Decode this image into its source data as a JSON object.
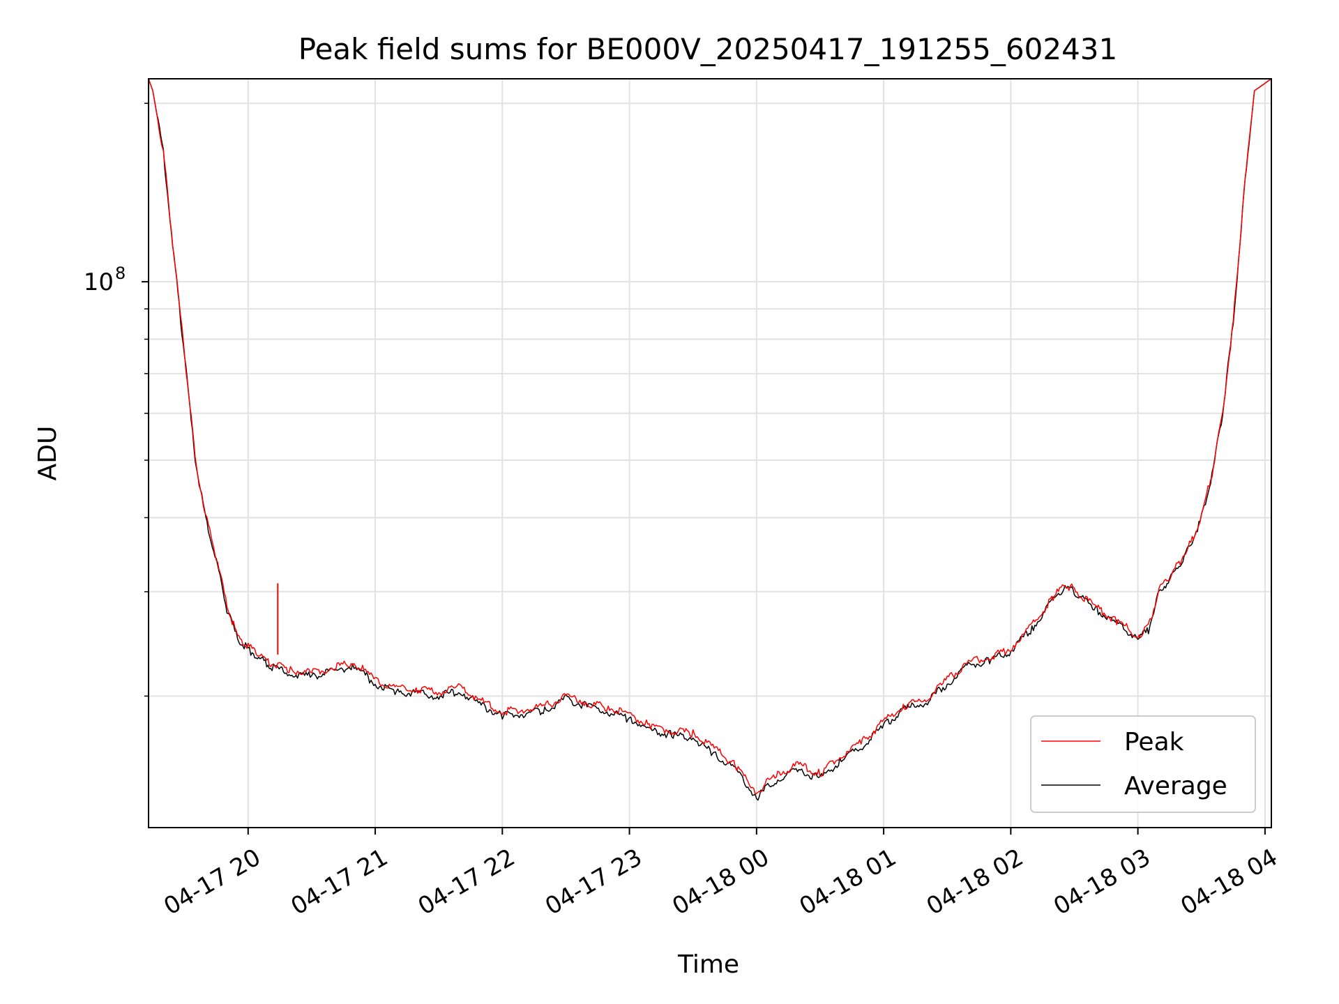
{
  "chart_data": {
    "type": "line",
    "title": "Peak field sums for BE000V_20250417_191255_602431",
    "xlabel": "Time",
    "ylabel": "ADU",
    "yscale": "log",
    "grid": true,
    "ylim": [
      12000000,
      220000000
    ],
    "xlim": [
      "04-17 19:13",
      "04-18 04:03"
    ],
    "x_ticks": [
      "04-17 20",
      "04-17 21",
      "04-17 22",
      "04-17 23",
      "04-18 00",
      "04-18 01",
      "04-18 02",
      "04-18 03",
      "04-18 04"
    ],
    "y_major_ticks": [
      {
        "value": 100000000,
        "mantissa": "10",
        "exponent": "8"
      }
    ],
    "y_minor_ticks": [
      20000000,
      30000000,
      40000000,
      50000000,
      60000000,
      70000000,
      80000000,
      90000000,
      200000000
    ],
    "legend": {
      "position": "lower right",
      "entries": [
        "Peak",
        "Average"
      ]
    },
    "colors": {
      "Peak": "#ff0000",
      "Average": "#000000"
    },
    "series": [
      {
        "name": "Average",
        "x": [
          "04-17 19:13",
          "04-17 19:15",
          "04-17 19:20",
          "04-17 19:25",
          "04-17 19:30",
          "04-17 19:35",
          "04-17 19:40",
          "04-17 19:45",
          "04-17 19:50",
          "04-17 19:55",
          "04-17 20:00",
          "04-17 20:05",
          "04-17 20:10",
          "04-17 20:20",
          "04-17 20:30",
          "04-17 20:40",
          "04-17 20:50",
          "04-17 21:00",
          "04-17 21:10",
          "04-17 21:20",
          "04-17 21:30",
          "04-17 21:40",
          "04-17 21:50",
          "04-17 22:00",
          "04-17 22:10",
          "04-17 22:20",
          "04-17 22:30",
          "04-17 22:40",
          "04-17 22:50",
          "04-17 23:00",
          "04-17 23:10",
          "04-17 23:20",
          "04-17 23:30",
          "04-17 23:40",
          "04-17 23:50",
          "04-18 00:00",
          "04-18 00:10",
          "04-18 00:20",
          "04-18 00:30",
          "04-18 00:40",
          "04-18 00:50",
          "04-18 01:00",
          "04-18 01:10",
          "04-18 01:20",
          "04-18 01:30",
          "04-18 01:40",
          "04-18 01:50",
          "04-18 02:00",
          "04-18 02:10",
          "04-18 02:20",
          "04-18 02:25",
          "04-18 02:30",
          "04-18 02:40",
          "04-18 02:50",
          "04-18 03:00",
          "04-18 03:05",
          "04-18 03:10",
          "04-18 03:15",
          "04-18 03:20",
          "04-18 03:25",
          "04-18 03:30",
          "04-18 03:35",
          "04-18 03:40",
          "04-18 03:45",
          "04-18 03:50",
          "04-18 03:55",
          "04-18 04:03"
        ],
        "y": [
          220000000,
          210000000,
          165000000,
          110000000,
          75000000,
          50000000,
          40000000,
          34000000,
          28000000,
          25000000,
          24000000,
          23200000,
          22500000,
          21800000,
          21600000,
          22000000,
          22500000,
          21000000,
          20300000,
          20200000,
          20000000,
          20400000,
          19300000,
          18500000,
          18700000,
          18900000,
          19800000,
          19200000,
          18800000,
          18300000,
          17500000,
          17200000,
          17000000,
          16000000,
          15000000,
          13500000,
          14500000,
          15000000,
          14500000,
          15600000,
          16500000,
          17800000,
          19000000,
          19500000,
          21000000,
          22500000,
          23000000,
          23800000,
          26000000,
          29000000,
          30500000,
          30000000,
          28000000,
          26500000,
          25000000,
          25800000,
          30000000,
          31500000,
          33500000,
          36000000,
          40000000,
          47000000,
          60000000,
          85000000,
          140000000,
          210000000,
          220000000
        ]
      },
      {
        "name": "Peak",
        "x": [
          "04-17 19:13",
          "04-17 19:15",
          "04-17 19:20",
          "04-17 19:25",
          "04-17 19:30",
          "04-17 19:35",
          "04-17 19:40",
          "04-17 19:45",
          "04-17 19:50",
          "04-17 19:55",
          "04-17 20:00",
          "04-17 20:05",
          "04-17 20:10",
          "04-17 20:20",
          "04-17 20:30",
          "04-17 20:40",
          "04-17 20:50",
          "04-17 21:00",
          "04-17 21:10",
          "04-17 21:20",
          "04-17 21:30",
          "04-17 21:40",
          "04-17 21:50",
          "04-17 22:00",
          "04-17 22:10",
          "04-17 22:20",
          "04-17 22:30",
          "04-17 22:40",
          "04-17 22:50",
          "04-17 23:00",
          "04-17 23:10",
          "04-17 23:20",
          "04-17 23:30",
          "04-17 23:40",
          "04-17 23:50",
          "04-18 00:00",
          "04-18 00:10",
          "04-18 00:20",
          "04-18 00:30",
          "04-18 00:40",
          "04-18 00:50",
          "04-18 01:00",
          "04-18 01:10",
          "04-18 01:20",
          "04-18 01:30",
          "04-18 01:40",
          "04-18 01:50",
          "04-18 02:00",
          "04-18 02:10",
          "04-18 02:20",
          "04-18 02:25",
          "04-18 02:30",
          "04-18 02:40",
          "04-18 02:50",
          "04-18 03:00",
          "04-18 03:05",
          "04-18 03:10",
          "04-18 03:15",
          "04-18 03:20",
          "04-18 03:25",
          "04-18 03:30",
          "04-18 03:35",
          "04-18 03:40",
          "04-18 03:45",
          "04-18 03:50",
          "04-18 03:55",
          "04-18 04:03"
        ],
        "y": [
          220000000,
          210000000,
          166000000,
          111000000,
          75500000,
          50500000,
          40400000,
          34300000,
          28300000,
          25300000,
          24300000,
          23500000,
          22800000,
          22100000,
          21900000,
          22300000,
          22800000,
          21300000,
          20600000,
          20500000,
          20300000,
          20700000,
          19600000,
          18800000,
          19000000,
          19200000,
          20100000,
          19500000,
          19100000,
          18600000,
          17800000,
          17500000,
          17300000,
          16300000,
          15300000,
          13800000,
          14800000,
          15300000,
          14800000,
          15900000,
          16800000,
          18100000,
          19300000,
          19800000,
          21300000,
          22800000,
          23300000,
          24100000,
          26300000,
          29300000,
          30800000,
          30300000,
          28300000,
          26800000,
          25300000,
          26100000,
          30300000,
          31800000,
          33800000,
          36300000,
          40400000,
          47400000,
          60400000,
          85500000,
          140500000,
          210000000,
          220000000
        ],
        "spikes": [
          {
            "x": "04-17 20:14",
            "y": 31000000
          }
        ]
      }
    ]
  }
}
